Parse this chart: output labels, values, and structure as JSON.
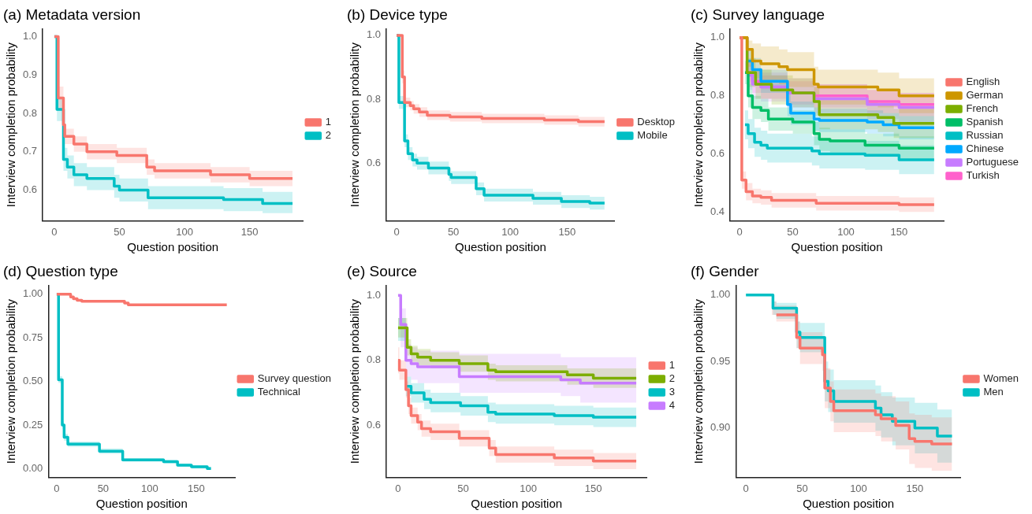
{
  "chart_data": [
    {
      "type": "step",
      "title": "(a) Metadata version",
      "xlabel": "Question position",
      "ylabel": "Interview completion probability",
      "xlim": [
        -9,
        191
      ],
      "xticks": [
        0,
        50,
        100,
        150
      ],
      "ylim": [
        0.52,
        1.02
      ],
      "yticks": [
        0.6,
        0.7,
        0.8,
        0.9,
        {
          "value": 1,
          "label": "1.0"
        }
      ],
      "legend": "right",
      "grid": false,
      "series": [
        {
          "name": "1",
          "color": "#f8766d",
          "x": [
            0,
            3,
            7,
            8,
            15,
            25,
            48,
            71,
            77,
            120,
            150,
            183
          ],
          "values": [
            1,
            0.84,
            0.77,
            0.74,
            0.72,
            0.7,
            0.69,
            0.66,
            0.65,
            0.64,
            0.63,
            0.63
          ],
          "lower": [
            1,
            0.81,
            0.75,
            0.72,
            0.7,
            0.68,
            0.67,
            0.64,
            0.63,
            0.62,
            0.61,
            0.61
          ],
          "upper": [
            1,
            0.87,
            0.79,
            0.76,
            0.74,
            0.72,
            0.71,
            0.68,
            0.67,
            0.66,
            0.65,
            0.65
          ]
        },
        {
          "name": "2",
          "color": "#00bfc4",
          "x": [
            0,
            2,
            7,
            10,
            15,
            25,
            46,
            50,
            72,
            130,
            160,
            183
          ],
          "values": [
            1,
            0.81,
            0.68,
            0.66,
            0.64,
            0.63,
            0.61,
            0.6,
            0.58,
            0.575,
            0.565,
            0.565
          ],
          "lower": [
            1,
            0.78,
            0.65,
            0.63,
            0.61,
            0.6,
            0.58,
            0.57,
            0.55,
            0.545,
            0.54,
            0.54
          ],
          "upper": [
            1,
            0.84,
            0.71,
            0.69,
            0.67,
            0.66,
            0.64,
            0.63,
            0.61,
            0.605,
            0.595,
            0.595
          ]
        }
      ]
    },
    {
      "type": "step",
      "title": "(b) Device type",
      "xlabel": "Question position",
      "ylabel": "Interview completion probability",
      "xlim": [
        -9,
        192
      ],
      "xticks": [
        0,
        50,
        100,
        150
      ],
      "ylim": [
        0.42,
        1.02
      ],
      "yticks": [
        0.6,
        0.8,
        {
          "value": 1,
          "label": "1.0"
        }
      ],
      "legend": "right",
      "grid": false,
      "series": [
        {
          "name": "Desktop",
          "color": "#f8766d",
          "x": [
            0,
            5,
            7,
            12,
            15,
            20,
            27,
            47,
            75,
            130,
            160,
            183
          ],
          "values": [
            1,
            0.87,
            0.79,
            0.78,
            0.77,
            0.76,
            0.75,
            0.745,
            0.74,
            0.735,
            0.73,
            0.73
          ],
          "lower": [
            1,
            0.85,
            0.775,
            0.765,
            0.755,
            0.745,
            0.735,
            0.73,
            0.725,
            0.72,
            0.715,
            0.715
          ],
          "upper": [
            1,
            0.89,
            0.805,
            0.795,
            0.785,
            0.775,
            0.765,
            0.76,
            0.755,
            0.75,
            0.745,
            0.745
          ]
        },
        {
          "name": "Mobile",
          "color": "#00bfc4",
          "x": [
            0,
            2,
            7,
            10,
            14,
            18,
            28,
            46,
            48,
            70,
            77,
            120,
            145,
            170,
            183
          ],
          "values": [
            1,
            0.79,
            0.67,
            0.63,
            0.61,
            0.6,
            0.585,
            0.565,
            0.555,
            0.52,
            0.5,
            0.49,
            0.48,
            0.475,
            0.475
          ],
          "lower": [
            1,
            0.77,
            0.65,
            0.61,
            0.59,
            0.58,
            0.565,
            0.545,
            0.535,
            0.5,
            0.48,
            0.47,
            0.46,
            0.455,
            0.455
          ],
          "upper": [
            1,
            0.81,
            0.69,
            0.65,
            0.63,
            0.62,
            0.605,
            0.585,
            0.575,
            0.54,
            0.52,
            0.51,
            0.5,
            0.495,
            0.495
          ]
        }
      ]
    },
    {
      "type": "step",
      "title": "(c) Survey language",
      "xlabel": "Question position",
      "ylabel": "Interview completion probability",
      "xlim": [
        -9,
        192
      ],
      "xticks": [
        0,
        50,
        100,
        150
      ],
      "ylim": [
        0.37,
        1.03
      ],
      "yticks": [
        0.4,
        0.6,
        0.8,
        {
          "value": 1,
          "label": "1.0"
        }
      ],
      "legend": "right",
      "grid": false,
      "series": [
        {
          "name": "English",
          "color": "#f8766d",
          "x": [
            0,
            2,
            6,
            12,
            20,
            30,
            72,
            150,
            183
          ],
          "values": [
            1,
            0.51,
            0.47,
            0.455,
            0.45,
            0.44,
            0.43,
            0.425,
            0.425
          ],
          "lower": [
            1,
            0.48,
            0.44,
            0.43,
            0.425,
            0.415,
            0.405,
            0.4,
            0.4
          ],
          "upper": [
            1,
            0.54,
            0.5,
            0.48,
            0.475,
            0.465,
            0.455,
            0.45,
            0.45
          ]
        },
        {
          "name": "German",
          "color": "#cd9600",
          "x": [
            0,
            7,
            12,
            20,
            37,
            45,
            70,
            74,
            130,
            150,
            183
          ],
          "values": [
            1,
            0.96,
            0.92,
            0.91,
            0.9,
            0.89,
            0.84,
            0.83,
            0.82,
            0.8,
            0.8
          ],
          "lower": [
            1,
            0.9,
            0.86,
            0.85,
            0.84,
            0.83,
            0.78,
            0.77,
            0.76,
            0.74,
            0.74
          ],
          "upper": [
            1,
            0.99,
            0.98,
            0.97,
            0.96,
            0.95,
            0.9,
            0.89,
            0.88,
            0.86,
            0.86
          ]
        },
        {
          "name": "French",
          "color": "#7cae00",
          "x": [
            0,
            7,
            15,
            30,
            50,
            70,
            75,
            130,
            145,
            183
          ],
          "values": [
            1,
            0.88,
            0.84,
            0.82,
            0.81,
            0.78,
            0.735,
            0.725,
            0.705,
            0.705
          ],
          "lower": [
            1,
            0.83,
            0.79,
            0.77,
            0.76,
            0.73,
            0.685,
            0.675,
            0.655,
            0.655
          ],
          "upper": [
            1,
            0.93,
            0.89,
            0.87,
            0.86,
            0.83,
            0.785,
            0.775,
            0.755,
            0.755
          ]
        },
        {
          "name": "Spanish",
          "color": "#00be67",
          "x": [
            0,
            5,
            8,
            12,
            20,
            27,
            50,
            70,
            75,
            85,
            118,
            150,
            183
          ],
          "values": [
            null,
            0.88,
            0.8,
            0.76,
            0.75,
            0.72,
            0.71,
            0.67,
            0.65,
            0.645,
            0.63,
            0.62,
            0.62
          ],
          "lower": [
            1,
            0.84,
            0.76,
            0.72,
            0.71,
            0.68,
            0.67,
            0.63,
            0.61,
            0.605,
            0.59,
            0.58,
            0.58
          ],
          "upper": [
            1,
            0.92,
            0.84,
            0.8,
            0.79,
            0.76,
            0.75,
            0.71,
            0.69,
            0.685,
            0.67,
            0.66,
            0.66
          ]
        },
        {
          "name": "Russian",
          "color": "#00bfc4",
          "x": [
            0,
            5,
            8,
            14,
            20,
            26,
            68,
            75,
            118,
            150,
            183
          ],
          "values": [
            null,
            0.7,
            0.67,
            0.64,
            0.63,
            0.62,
            0.61,
            0.6,
            0.595,
            0.58,
            0.58
          ],
          "lower": [
            1,
            0.65,
            0.62,
            0.59,
            0.58,
            0.57,
            0.56,
            0.55,
            0.545,
            0.53,
            0.53
          ],
          "upper": [
            1,
            0.75,
            0.72,
            0.69,
            0.68,
            0.67,
            0.66,
            0.65,
            0.645,
            0.63,
            0.63
          ]
        },
        {
          "name": "Chinese",
          "color": "#00a9ff",
          "x": [
            0,
            7,
            12,
            20,
            45,
            48,
            70,
            75,
            120,
            135,
            150,
            183
          ],
          "values": [
            null,
            0.92,
            0.89,
            0.85,
            0.77,
            0.74,
            0.72,
            0.715,
            0.71,
            0.7,
            0.69,
            0.69
          ],
          "lower": [
            1,
            0.88,
            0.85,
            0.81,
            0.73,
            0.7,
            0.68,
            0.675,
            0.67,
            0.66,
            0.65,
            0.65
          ],
          "upper": [
            1,
            0.96,
            0.93,
            0.89,
            0.81,
            0.78,
            0.76,
            0.755,
            0.75,
            0.74,
            0.73,
            0.73
          ]
        },
        {
          "name": "Portuguese",
          "color": "#c77cff",
          "x": [
            0,
            7,
            12,
            20,
            45,
            70,
            120,
            150,
            183
          ],
          "values": [
            null,
            0.87,
            0.84,
            0.83,
            0.81,
            0.79,
            0.77,
            0.76,
            0.76
          ],
          "lower": [
            1,
            0.82,
            0.79,
            0.78,
            0.76,
            0.74,
            0.72,
            0.71,
            0.71
          ],
          "upper": [
            1,
            0.92,
            0.89,
            0.88,
            0.86,
            0.84,
            0.82,
            0.81,
            0.81
          ]
        },
        {
          "name": "Turkish",
          "color": "#ff61cc",
          "x": [
            0,
            7,
            12,
            20,
            45,
            70,
            120,
            150,
            183
          ],
          "values": [
            1,
            0.88,
            0.85,
            0.83,
            0.81,
            0.8,
            0.78,
            0.77,
            0.77
          ],
          "lower": [
            1,
            0.84,
            0.81,
            0.79,
            0.77,
            0.76,
            0.74,
            0.73,
            0.73
          ],
          "upper": [
            1,
            0.92,
            0.89,
            0.87,
            0.85,
            0.84,
            0.82,
            0.81,
            0.81
          ]
        }
      ]
    },
    {
      "type": "step",
      "title": "(d) Question type",
      "xlabel": "Question position",
      "ylabel": "Interview completion probability",
      "xlim": [
        -9,
        192
      ],
      "xticks": [
        0,
        50,
        100,
        150
      ],
      "ylim": [
        -0.05,
        1.05
      ],
      "yticks": [
        {
          "value": 0,
          "label": "0.00"
        },
        {
          "value": 0.25,
          "label": "0.25"
        },
        {
          "value": 0.5,
          "label": "0.50"
        },
        {
          "value": 0.75,
          "label": "0.75"
        },
        {
          "value": 1,
          "label": "1.00"
        }
      ],
      "legend": "right",
      "grid": false,
      "series": [
        {
          "name": "Survey question",
          "color": "#f8766d",
          "x": [
            0,
            15,
            18,
            22,
            27,
            73,
            77,
            183
          ],
          "values": [
            1,
            0.985,
            0.975,
            0.965,
            0.96,
            0.95,
            0.94,
            0.94
          ]
        },
        {
          "name": "Technical",
          "color": "#00bfc4",
          "x": [
            0,
            2,
            6,
            8,
            12,
            46,
            71,
            115,
            130,
            145,
            162,
            166
          ],
          "values": [
            1,
            0.51,
            0.25,
            0.18,
            0.14,
            0.1,
            0.05,
            0.04,
            0.02,
            0.01,
            0,
            0
          ],
          "lower": [
            1,
            0.49,
            0.23,
            0.16,
            0.125,
            0.085,
            0.04,
            0.03,
            0.01,
            0,
            0,
            0
          ],
          "upper": [
            1,
            0.53,
            0.27,
            0.2,
            0.155,
            0.115,
            0.06,
            0.05,
            0.03,
            0.02,
            0.01,
            0.01
          ]
        }
      ]
    },
    {
      "type": "step",
      "title": "(e) Source",
      "xlabel": "Question position",
      "ylabel": "Interview completion probability",
      "xlim": [
        -9,
        191
      ],
      "xticks": [
        0,
        50,
        100,
        150
      ],
      "ylim": [
        0.44,
        1.03
      ],
      "yticks": [
        0.6,
        0.8,
        {
          "value": 1,
          "label": "1.0"
        }
      ],
      "legend": "right",
      "grid": false,
      "series": [
        {
          "name": "1",
          "color": "#f8766d",
          "x": [
            0,
            1,
            6,
            8,
            10,
            15,
            18,
            25,
            47,
            70,
            75,
            120,
            150,
            183
          ],
          "values": [
            0.8,
            0.77,
            0.71,
            0.66,
            0.63,
            0.61,
            0.59,
            0.58,
            0.56,
            0.53,
            0.51,
            0.5,
            0.49,
            0.49
          ],
          "lower": [
            0.76,
            0.74,
            0.685,
            0.635,
            0.605,
            0.585,
            0.565,
            0.555,
            0.535,
            0.505,
            0.485,
            0.475,
            0.465,
            0.465
          ],
          "upper": [
            0.84,
            0.8,
            0.735,
            0.685,
            0.655,
            0.635,
            0.615,
            0.605,
            0.585,
            0.555,
            0.535,
            0.525,
            0.515,
            0.515
          ]
        },
        {
          "name": "2",
          "color": "#7cae00",
          "x": [
            0,
            7,
            10,
            15,
            25,
            47,
            69,
            75,
            130,
            150,
            183
          ],
          "values": [
            0.9,
            0.84,
            0.82,
            0.81,
            0.8,
            0.79,
            0.77,
            0.765,
            0.755,
            0.745,
            0.745
          ],
          "lower": [
            0.87,
            0.815,
            0.795,
            0.785,
            0.775,
            0.765,
            0.74,
            0.735,
            0.725,
            0.715,
            0.715
          ],
          "upper": [
            0.93,
            0.865,
            0.845,
            0.835,
            0.825,
            0.815,
            0.79,
            0.785,
            0.775,
            0.775,
            0.775
          ]
        },
        {
          "name": "3",
          "color": "#00bfc4",
          "x": [
            0,
            6,
            10,
            20,
            25,
            48,
            69,
            75,
            120,
            150,
            183
          ],
          "values": [
            null,
            0.72,
            0.7,
            0.68,
            0.67,
            0.66,
            0.64,
            0.635,
            0.63,
            0.625,
            0.625
          ],
          "lower": [
            0.86,
            0.69,
            0.67,
            0.65,
            0.64,
            0.63,
            0.61,
            0.605,
            0.6,
            0.595,
            0.595
          ],
          "upper": [
            0.93,
            0.75,
            0.73,
            0.71,
            0.7,
            0.69,
            0.67,
            0.665,
            0.66,
            0.655,
            0.655
          ]
        },
        {
          "name": "4",
          "color": "#c77cff",
          "x": [
            0,
            2,
            6,
            10,
            15,
            47,
            125,
            140,
            183
          ],
          "values": [
            1,
            0.91,
            0.8,
            0.79,
            0.78,
            0.75,
            0.74,
            0.73,
            0.73
          ],
          "lower": [
            1,
            0.84,
            0.75,
            0.74,
            0.73,
            0.7,
            0.69,
            0.67,
            0.67
          ],
          "upper": [
            1,
            0.96,
            0.85,
            0.84,
            0.83,
            0.82,
            0.81,
            0.81,
            0.81
          ]
        }
      ]
    },
    {
      "type": "step",
      "title": "(f) Gender",
      "xlabel": "Question position",
      "ylabel": "Interview completion probability",
      "xlim": [
        -9,
        191
      ],
      "xticks": [
        0,
        50,
        100,
        150
      ],
      "ylim": [
        0.863,
        1.007
      ],
      "yticks": [
        {
          "value": 0.9,
          "label": "0.90"
        },
        {
          "value": 0.95,
          "label": "0.95"
        },
        {
          "value": 1,
          "label": "1.00"
        }
      ],
      "legend": "right",
      "grid": false,
      "series": [
        {
          "name": "Women",
          "color": "#f8766d",
          "x": [
            0,
            23,
            27,
            45,
            48,
            68,
            70,
            75,
            78,
            115,
            120,
            133,
            145,
            150,
            165,
            183
          ],
          "values": [
            null,
            null,
            0.985,
            0.968,
            0.96,
            0.955,
            0.93,
            0.92,
            0.913,
            0.91,
            0.907,
            0.902,
            0.892,
            0.89,
            0.888,
            0.888
          ],
          "lower": [
            1,
            0.985,
            0.98,
            0.96,
            0.948,
            0.943,
            0.915,
            0.905,
            0.897,
            0.894,
            0.89,
            0.884,
            0.873,
            0.87,
            0.868,
            0.868
          ],
          "upper": [
            1,
            0.995,
            0.992,
            0.98,
            0.972,
            0.967,
            0.945,
            0.935,
            0.929,
            0.926,
            0.924,
            0.92,
            0.911,
            0.91,
            0.908,
            0.908
          ]
        },
        {
          "name": "Men",
          "color": "#00bfc4",
          "x": [
            0,
            24,
            27,
            45,
            48,
            70,
            73,
            78,
            115,
            120,
            130,
            150,
            170,
            183
          ],
          "values": [
            1,
            0.99,
            0.99,
            0.972,
            0.968,
            0.935,
            0.928,
            0.92,
            0.915,
            0.91,
            0.905,
            0.9,
            0.894,
            0.894
          ],
          "lower": [
            1,
            0.985,
            0.982,
            0.96,
            0.957,
            0.92,
            0.912,
            0.904,
            0.898,
            0.893,
            0.887,
            0.881,
            0.874,
            0.874
          ],
          "upper": [
            1,
            0.995,
            0.994,
            0.98,
            0.979,
            0.95,
            0.944,
            0.936,
            0.932,
            0.927,
            0.923,
            0.919,
            0.914,
            0.914
          ]
        }
      ]
    }
  ]
}
